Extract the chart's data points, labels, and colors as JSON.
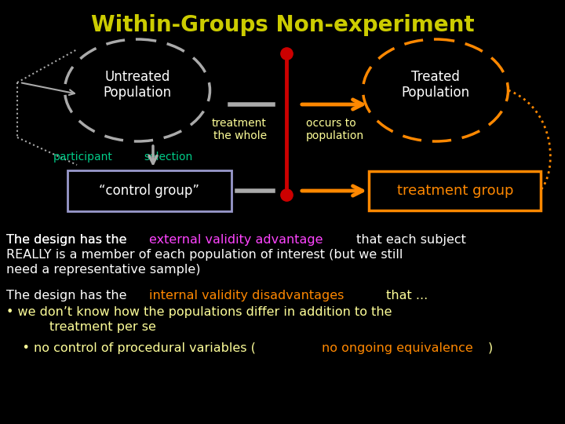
{
  "title": "Within-Groups Non-experiment",
  "title_color": "#cccc00",
  "bg_color": "#000000",
  "untreated_label": "Untreated\nPopulation",
  "treated_label": "Treated\nPopulation",
  "treatment_label": "treatment\nthe whole",
  "occurs_label": "occurs to\npopulation",
  "participant_label": "participant",
  "selection_label": "selection",
  "control_label": "“control group”",
  "treatment_group_label": "treatment group",
  "text_color": "#ffff99",
  "cyan_color": "#00cc88",
  "orange_color": "#ff8800",
  "gray_color": "#aaaaaa",
  "red_color": "#cc0000",
  "white_color": "#ffffff",
  "magenta_color": "#ff44ff",
  "yellow_color": "#ffff00"
}
